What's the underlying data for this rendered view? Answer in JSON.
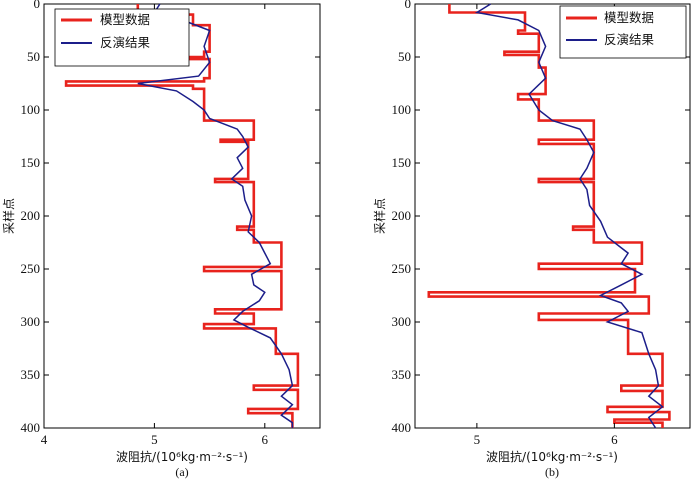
{
  "chart_data": [
    {
      "type": "line",
      "panel_caption": "(a)",
      "xlabel": "波阻抗/(10⁶kg·m⁻²·s⁻¹)",
      "ylabel": "采样点",
      "xlim": [
        4,
        6.5
      ],
      "ylim": [
        0,
        400
      ],
      "y_inverted": true,
      "xticks": [
        "4",
        "5",
        "6"
      ],
      "xtick_values": [
        4,
        5,
        6
      ],
      "yticks": [
        "0",
        "50",
        "100",
        "150",
        "200",
        "250",
        "300",
        "350",
        "400"
      ],
      "ytick_values": [
        0,
        50,
        100,
        150,
        200,
        250,
        300,
        350,
        400
      ],
      "legend_position": "top-left",
      "series": [
        {
          "name": "模型数据",
          "color": "#e8231d",
          "points": [
            [
              4.85,
              0
            ],
            [
              4.85,
              10
            ],
            [
              5.35,
              10
            ],
            [
              5.35,
              20
            ],
            [
              5.5,
              20
            ],
            [
              5.5,
              45
            ],
            [
              5.45,
              45
            ],
            [
              5.45,
              50
            ],
            [
              5.3,
              50
            ],
            [
              5.3,
              52
            ],
            [
              5.5,
              52
            ],
            [
              5.5,
              70
            ],
            [
              5.45,
              70
            ],
            [
              5.45,
              73
            ],
            [
              4.2,
              73
            ],
            [
              4.2,
              77
            ],
            [
              5.35,
              77
            ],
            [
              5.35,
              80
            ],
            [
              5.45,
              80
            ],
            [
              5.45,
              110
            ],
            [
              5.9,
              110
            ],
            [
              5.9,
              128
            ],
            [
              5.6,
              128
            ],
            [
              5.6,
              130
            ],
            [
              5.85,
              130
            ],
            [
              5.85,
              165
            ],
            [
              5.55,
              165
            ],
            [
              5.55,
              168
            ],
            [
              5.9,
              168
            ],
            [
              5.9,
              210
            ],
            [
              5.75,
              210
            ],
            [
              5.75,
              213
            ],
            [
              5.9,
              213
            ],
            [
              5.9,
              225
            ],
            [
              6.15,
              225
            ],
            [
              6.15,
              248
            ],
            [
              5.45,
              248
            ],
            [
              5.45,
              252
            ],
            [
              6.15,
              252
            ],
            [
              6.15,
              262
            ],
            [
              6.15,
              288
            ],
            [
              5.55,
              288
            ],
            [
              5.55,
              292
            ],
            [
              5.9,
              292
            ],
            [
              5.9,
              302
            ],
            [
              5.45,
              302
            ],
            [
              5.45,
              306
            ],
            [
              6.1,
              306
            ],
            [
              6.1,
              330
            ],
            [
              6.3,
              330
            ],
            [
              6.3,
              360
            ],
            [
              5.9,
              360
            ],
            [
              5.9,
              364
            ],
            [
              6.3,
              364
            ],
            [
              6.3,
              382
            ],
            [
              5.85,
              382
            ],
            [
              5.85,
              386
            ],
            [
              6.25,
              386
            ],
            [
              6.25,
              400
            ]
          ]
        },
        {
          "name": "反演结果",
          "color": "#1c1e8a",
          "points": [
            [
              5.05,
              0
            ],
            [
              5.0,
              8
            ],
            [
              5.25,
              15
            ],
            [
              5.5,
              25
            ],
            [
              5.45,
              40
            ],
            [
              5.5,
              55
            ],
            [
              5.4,
              68
            ],
            [
              4.85,
              75
            ],
            [
              5.2,
              82
            ],
            [
              5.35,
              92
            ],
            [
              5.45,
              100
            ],
            [
              5.5,
              108
            ],
            [
              5.6,
              112
            ],
            [
              5.75,
              118
            ],
            [
              5.8,
              125
            ],
            [
              5.85,
              135
            ],
            [
              5.75,
              145
            ],
            [
              5.8,
              155
            ],
            [
              5.7,
              165
            ],
            [
              5.8,
              172
            ],
            [
              5.82,
              185
            ],
            [
              5.88,
              200
            ],
            [
              5.85,
              215
            ],
            [
              5.95,
              225
            ],
            [
              6.0,
              235
            ],
            [
              6.05,
              245
            ],
            [
              5.88,
              255
            ],
            [
              5.9,
              265
            ],
            [
              6.0,
              272
            ],
            [
              5.95,
              280
            ],
            [
              5.8,
              290
            ],
            [
              5.72,
              298
            ],
            [
              5.85,
              305
            ],
            [
              6.05,
              315
            ],
            [
              6.15,
              330
            ],
            [
              6.22,
              345
            ],
            [
              6.25,
              360
            ],
            [
              6.15,
              370
            ],
            [
              6.25,
              378
            ],
            [
              6.15,
              388
            ],
            [
              6.25,
              395
            ],
            [
              6.25,
              400
            ]
          ]
        }
      ]
    },
    {
      "type": "line",
      "panel_caption": "(b)",
      "xlabel": "波阻抗/(10⁶kg·m⁻²·s⁻¹)",
      "ylabel": "采样点",
      "xlim": [
        4.55,
        6.55
      ],
      "ylim": [
        0,
        400
      ],
      "y_inverted": true,
      "xticks": [
        "5",
        "6"
      ],
      "xtick_values": [
        5,
        6
      ],
      "yticks": [
        "0",
        "50",
        "100",
        "150",
        "200",
        "250",
        "300",
        "350",
        "400"
      ],
      "ytick_values": [
        0,
        50,
        100,
        150,
        200,
        250,
        300,
        350,
        400
      ],
      "legend_position": "top-right",
      "series": [
        {
          "name": "模型数据",
          "color": "#e8231d",
          "points": [
            [
              4.8,
              0
            ],
            [
              4.8,
              8
            ],
            [
              5.35,
              8
            ],
            [
              5.35,
              25
            ],
            [
              5.3,
              25
            ],
            [
              5.3,
              28
            ],
            [
              5.45,
              28
            ],
            [
              5.45,
              45
            ],
            [
              5.2,
              45
            ],
            [
              5.2,
              48
            ],
            [
              5.45,
              48
            ],
            [
              5.45,
              60
            ],
            [
              5.5,
              60
            ],
            [
              5.5,
              85
            ],
            [
              5.3,
              85
            ],
            [
              5.3,
              90
            ],
            [
              5.45,
              90
            ],
            [
              5.45,
              110
            ],
            [
              5.85,
              110
            ],
            [
              5.85,
              128
            ],
            [
              5.45,
              128
            ],
            [
              5.45,
              132
            ],
            [
              5.85,
              132
            ],
            [
              5.85,
              165
            ],
            [
              5.45,
              165
            ],
            [
              5.45,
              168
            ],
            [
              5.85,
              168
            ],
            [
              5.85,
              210
            ],
            [
              5.7,
              210
            ],
            [
              5.7,
              213
            ],
            [
              5.85,
              213
            ],
            [
              5.85,
              225
            ],
            [
              6.2,
              225
            ],
            [
              6.2,
              245
            ],
            [
              5.45,
              245
            ],
            [
              5.45,
              250
            ],
            [
              6.15,
              250
            ],
            [
              6.15,
              272
            ],
            [
              4.65,
              272
            ],
            [
              4.65,
              276
            ],
            [
              6.25,
              276
            ],
            [
              6.25,
              292
            ],
            [
              5.45,
              292
            ],
            [
              5.45,
              298
            ],
            [
              6.1,
              298
            ],
            [
              6.1,
              330
            ],
            [
              6.35,
              330
            ],
            [
              6.35,
              360
            ],
            [
              6.05,
              360
            ],
            [
              6.05,
              365
            ],
            [
              6.35,
              365
            ],
            [
              6.35,
              380
            ],
            [
              5.95,
              380
            ],
            [
              5.95,
              385
            ],
            [
              6.4,
              385
            ],
            [
              6.4,
              392
            ],
            [
              6.0,
              392
            ],
            [
              6.0,
              395
            ],
            [
              6.35,
              395
            ],
            [
              6.35,
              400
            ]
          ]
        },
        {
          "name": "反演结果",
          "color": "#1c1e8a",
          "points": [
            [
              5.1,
              0
            ],
            [
              5.0,
              8
            ],
            [
              5.3,
              15
            ],
            [
              5.45,
              25
            ],
            [
              5.5,
              40
            ],
            [
              5.45,
              55
            ],
            [
              5.5,
              70
            ],
            [
              5.38,
              85
            ],
            [
              5.45,
              100
            ],
            [
              5.55,
              110
            ],
            [
              5.75,
              118
            ],
            [
              5.8,
              128
            ],
            [
              5.85,
              140
            ],
            [
              5.8,
              155
            ],
            [
              5.75,
              165
            ],
            [
              5.8,
              175
            ],
            [
              5.82,
              190
            ],
            [
              5.9,
              205
            ],
            [
              5.95,
              220
            ],
            [
              6.1,
              235
            ],
            [
              6.05,
              245
            ],
            [
              6.2,
              255
            ],
            [
              6.05,
              265
            ],
            [
              5.9,
              275
            ],
            [
              6.05,
              282
            ],
            [
              6.1,
              290
            ],
            [
              5.95,
              300
            ],
            [
              6.2,
              310
            ],
            [
              6.25,
              330
            ],
            [
              6.3,
              345
            ],
            [
              6.32,
              360
            ],
            [
              6.25,
              370
            ],
            [
              6.35,
              380
            ],
            [
              6.25,
              390
            ],
            [
              6.3,
              400
            ]
          ]
        }
      ]
    }
  ]
}
